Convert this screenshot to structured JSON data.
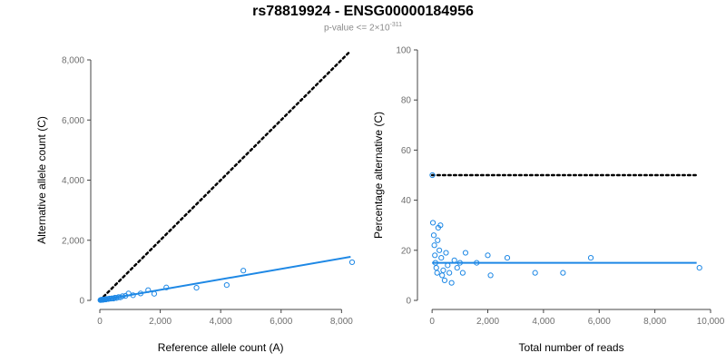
{
  "header": {
    "title": "rs78819924 - ENSG00000184956",
    "subtitle_prefix": "p-value <= 2×10",
    "subtitle_exponent": "-311"
  },
  "colors": {
    "series": "#1e88e5",
    "reference_line": "#000000",
    "axis": "#444444",
    "tick_label": "#6e6e6e"
  },
  "chart_data": [
    {
      "type": "scatter",
      "title": "",
      "xlabel": "Reference allele count (A)",
      "ylabel": "Alternative allele count (C)",
      "xlim": [
        0,
        8200
      ],
      "ylim": [
        0,
        8000
      ],
      "x_ticks": [
        0,
        2000,
        4000,
        6000,
        8000
      ],
      "y_ticks": [
        0,
        2000,
        4000,
        6000,
        8000
      ],
      "x_tick_labels": [
        "0",
        "2,000",
        "4,000",
        "6,000",
        "8,000"
      ],
      "y_tick_labels": [
        "0",
        "2,000",
        "4,000",
        "6,000",
        "8,000"
      ],
      "grid": false,
      "points": [
        {
          "x": 20,
          "y": 10
        },
        {
          "x": 40,
          "y": 20
        },
        {
          "x": 60,
          "y": 15
        },
        {
          "x": 80,
          "y": 25
        },
        {
          "x": 100,
          "y": 30
        },
        {
          "x": 120,
          "y": 20
        },
        {
          "x": 150,
          "y": 35
        },
        {
          "x": 180,
          "y": 40
        },
        {
          "x": 200,
          "y": 30
        },
        {
          "x": 240,
          "y": 50
        },
        {
          "x": 280,
          "y": 45
        },
        {
          "x": 320,
          "y": 60
        },
        {
          "x": 360,
          "y": 55
        },
        {
          "x": 400,
          "y": 70
        },
        {
          "x": 450,
          "y": 60
        },
        {
          "x": 500,
          "y": 90
        },
        {
          "x": 560,
          "y": 80
        },
        {
          "x": 620,
          "y": 110
        },
        {
          "x": 680,
          "y": 100
        },
        {
          "x": 750,
          "y": 140
        },
        {
          "x": 850,
          "y": 150
        },
        {
          "x": 950,
          "y": 230
        },
        {
          "x": 1100,
          "y": 170
        },
        {
          "x": 1350,
          "y": 230
        },
        {
          "x": 1600,
          "y": 340
        },
        {
          "x": 1800,
          "y": 220
        },
        {
          "x": 2200,
          "y": 430
        },
        {
          "x": 3200,
          "y": 420
        },
        {
          "x": 4200,
          "y": 510
        },
        {
          "x": 4750,
          "y": 990
        },
        {
          "x": 8350,
          "y": 1270
        }
      ],
      "fit_line": {
        "x": [
          0,
          8300
        ],
        "y": [
          0,
          1450
        ]
      },
      "reference_line": {
        "x": [
          0,
          8300
        ],
        "y": [
          0,
          8300
        ]
      }
    },
    {
      "type": "scatter",
      "title": "",
      "xlabel": "Total number of reads",
      "ylabel": "Percentage alternative (C)",
      "xlim": [
        -200,
        10000
      ],
      "ylim": [
        0,
        100
      ],
      "x_ticks": [
        0,
        2000,
        4000,
        6000,
        8000,
        10000
      ],
      "y_ticks": [
        0,
        20,
        40,
        60,
        80,
        100
      ],
      "x_tick_labels": [
        "0",
        "2,000",
        "4,000",
        "6,000",
        "8,000",
        "10,000"
      ],
      "y_tick_labels": [
        "0",
        "20",
        "40",
        "60",
        "80",
        "100"
      ],
      "grid": false,
      "points": [
        {
          "x": 10,
          "y": 50
        },
        {
          "x": 30,
          "y": 31
        },
        {
          "x": 60,
          "y": 26
        },
        {
          "x": 80,
          "y": 22
        },
        {
          "x": 100,
          "y": 18
        },
        {
          "x": 120,
          "y": 15
        },
        {
          "x": 150,
          "y": 13
        },
        {
          "x": 180,
          "y": 11
        },
        {
          "x": 200,
          "y": 24
        },
        {
          "x": 220,
          "y": 29
        },
        {
          "x": 260,
          "y": 20
        },
        {
          "x": 300,
          "y": 30
        },
        {
          "x": 330,
          "y": 17
        },
        {
          "x": 360,
          "y": 10
        },
        {
          "x": 400,
          "y": 12
        },
        {
          "x": 450,
          "y": 8
        },
        {
          "x": 500,
          "y": 19
        },
        {
          "x": 560,
          "y": 14
        },
        {
          "x": 620,
          "y": 11
        },
        {
          "x": 700,
          "y": 7
        },
        {
          "x": 800,
          "y": 16
        },
        {
          "x": 900,
          "y": 13
        },
        {
          "x": 1000,
          "y": 15
        },
        {
          "x": 1100,
          "y": 11
        },
        {
          "x": 1200,
          "y": 19
        },
        {
          "x": 1600,
          "y": 15
        },
        {
          "x": 2000,
          "y": 18
        },
        {
          "x": 2100,
          "y": 10
        },
        {
          "x": 2700,
          "y": 17
        },
        {
          "x": 3700,
          "y": 11
        },
        {
          "x": 4700,
          "y": 11
        },
        {
          "x": 5700,
          "y": 17
        },
        {
          "x": 9600,
          "y": 13
        }
      ],
      "fit_line": {
        "x": [
          0,
          9500
        ],
        "y": [
          15,
          15
        ]
      },
      "reference_line": {
        "x": [
          0,
          9500
        ],
        "y": [
          50,
          50
        ]
      }
    }
  ]
}
